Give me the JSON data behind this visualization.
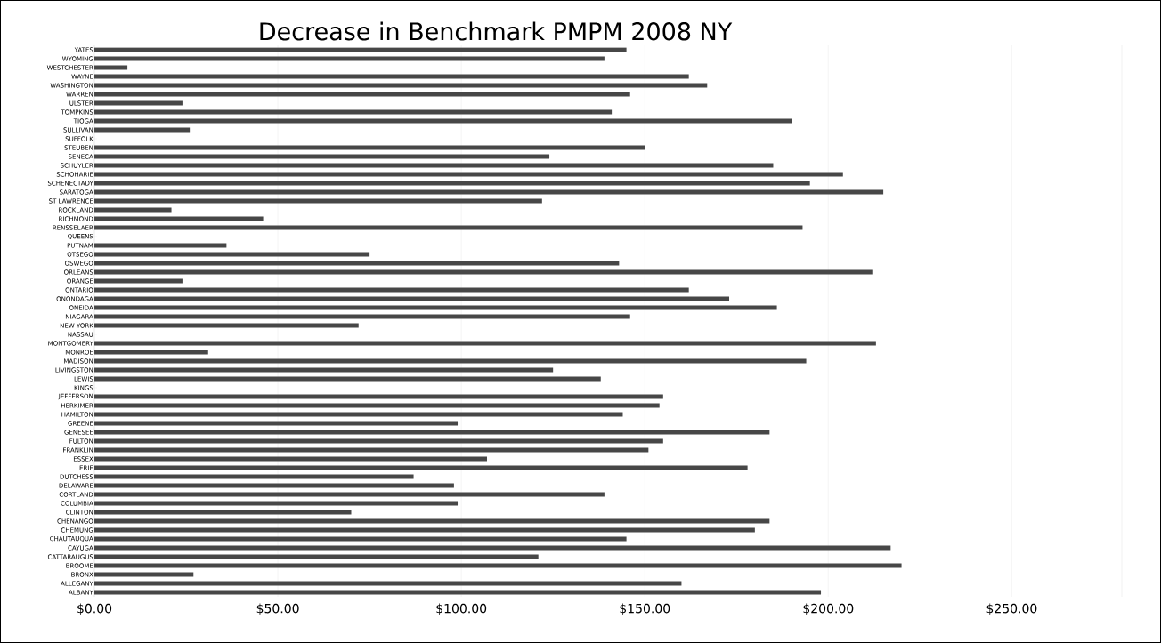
{
  "chart_data": {
    "type": "bar",
    "orientation": "horizontal",
    "title": "Decrease in Benchmark PMPM 2008 NY",
    "categories": [
      "YATES",
      "WYOMING",
      "WESTCHESTER",
      "WAYNE",
      "WASHINGTON",
      "WARREN",
      "ULSTER",
      "TOMPKINS",
      "TIOGA",
      "SULLIVAN",
      "SUFFOLK",
      "STEUBEN",
      "SENECA",
      "SCHUYLER",
      "SCHOHARIE",
      "SCHENECTADY",
      "SARATOGA",
      "ST LAWRENCE",
      "ROCKLAND",
      "RICHMOND",
      "RENSSELAER",
      "QUEENS",
      "PUTNAM",
      "OTSEGO",
      "OSWEGO",
      "ORLEANS",
      "ORANGE",
      "ONTARIO",
      "ONONDAGA",
      "ONEIDA",
      "NIAGARA",
      "NEW YORK",
      "NASSAU",
      "MONTGOMERY",
      "MONROE",
      "MADISON",
      "LIVINGSTON",
      "LEWIS",
      "KINGS",
      "JEFFERSON",
      "HERKIMER",
      "HAMILTON",
      "GREENE",
      "GENESEE",
      "FULTON",
      "FRANKLIN",
      "ESSEX",
      "ERIE",
      "DUTCHESS",
      "DELAWARE",
      "CORTLAND",
      "COLUMBIA",
      "CLINTON",
      "CHENANGO",
      "CHEMUNG",
      "CHAUTAUQUA",
      "CAYUGA",
      "CATTARAUGUS",
      "BROOME",
      "BRONX",
      "ALLEGANY",
      "ALBANY"
    ],
    "values": [
      145,
      139,
      9,
      162,
      167,
      146,
      24,
      141,
      190,
      26,
      null,
      150,
      124,
      185,
      204,
      195,
      215,
      122,
      21,
      46,
      193,
      null,
      36,
      75,
      143,
      212,
      24,
      162,
      173,
      186,
      146,
      72,
      null,
      213,
      31,
      194,
      125,
      138,
      null,
      155,
      154,
      144,
      99,
      184,
      155,
      151,
      107,
      178,
      87,
      98,
      139,
      99,
      70,
      184,
      180,
      145,
      217,
      121,
      220,
      27,
      160,
      198
    ],
    "color": "#474747",
    "xlim": [
      0,
      280
    ],
    "xticks": [
      {
        "value": 0,
        "label": "$0.00"
      },
      {
        "value": 50,
        "label": "$50.00"
      },
      {
        "value": 100,
        "label": "$100.00"
      },
      {
        "value": 150,
        "label": "$150.00"
      },
      {
        "value": 200,
        "label": "$200.00"
      },
      {
        "value": 250,
        "label": "$250.00"
      }
    ],
    "grid": "x"
  }
}
